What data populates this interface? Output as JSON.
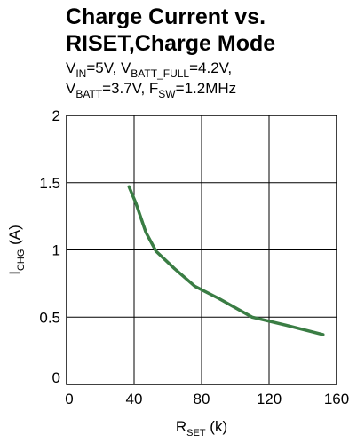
{
  "chart_data": {
    "type": "line",
    "title_line1": "Charge Current vs.",
    "title_line2": "RISET,Charge Mode",
    "subtitle": {
      "line1": [
        {
          "t": "V"
        },
        {
          "t": "IN",
          "sub": true
        },
        {
          "t": "=5V, V"
        },
        {
          "t": "BATT_FULL",
          "sub": true
        },
        {
          "t": "=4.2V,"
        }
      ],
      "line2": [
        {
          "t": "V"
        },
        {
          "t": "BATT",
          "sub": true
        },
        {
          "t": "=3.7V, F"
        },
        {
          "t": "SW",
          "sub": true
        },
        {
          "t": "=1.2MHz"
        }
      ]
    },
    "xlabel_main": "R",
    "xlabel_sub": "SET",
    "xlabel_unit": " (k)",
    "ylabel_main": "I",
    "ylabel_sub": "CHG",
    "ylabel_unit": " (A)",
    "xlim": [
      0,
      160
    ],
    "ylim": [
      0,
      2
    ],
    "xticks": [
      "0",
      "40",
      "80",
      "120",
      "160"
    ],
    "yticks": [
      "0",
      "0.5",
      "1",
      "1.5",
      "2"
    ],
    "grid": true,
    "line_color": "#3a7d44",
    "series": [
      {
        "x": [
          37,
          41,
          47,
          53,
          64,
          76,
          90,
          110,
          130,
          152
        ],
        "y": [
          1.47,
          1.35,
          1.13,
          0.99,
          0.86,
          0.73,
          0.64,
          0.5,
          0.44,
          0.37
        ]
      }
    ]
  }
}
